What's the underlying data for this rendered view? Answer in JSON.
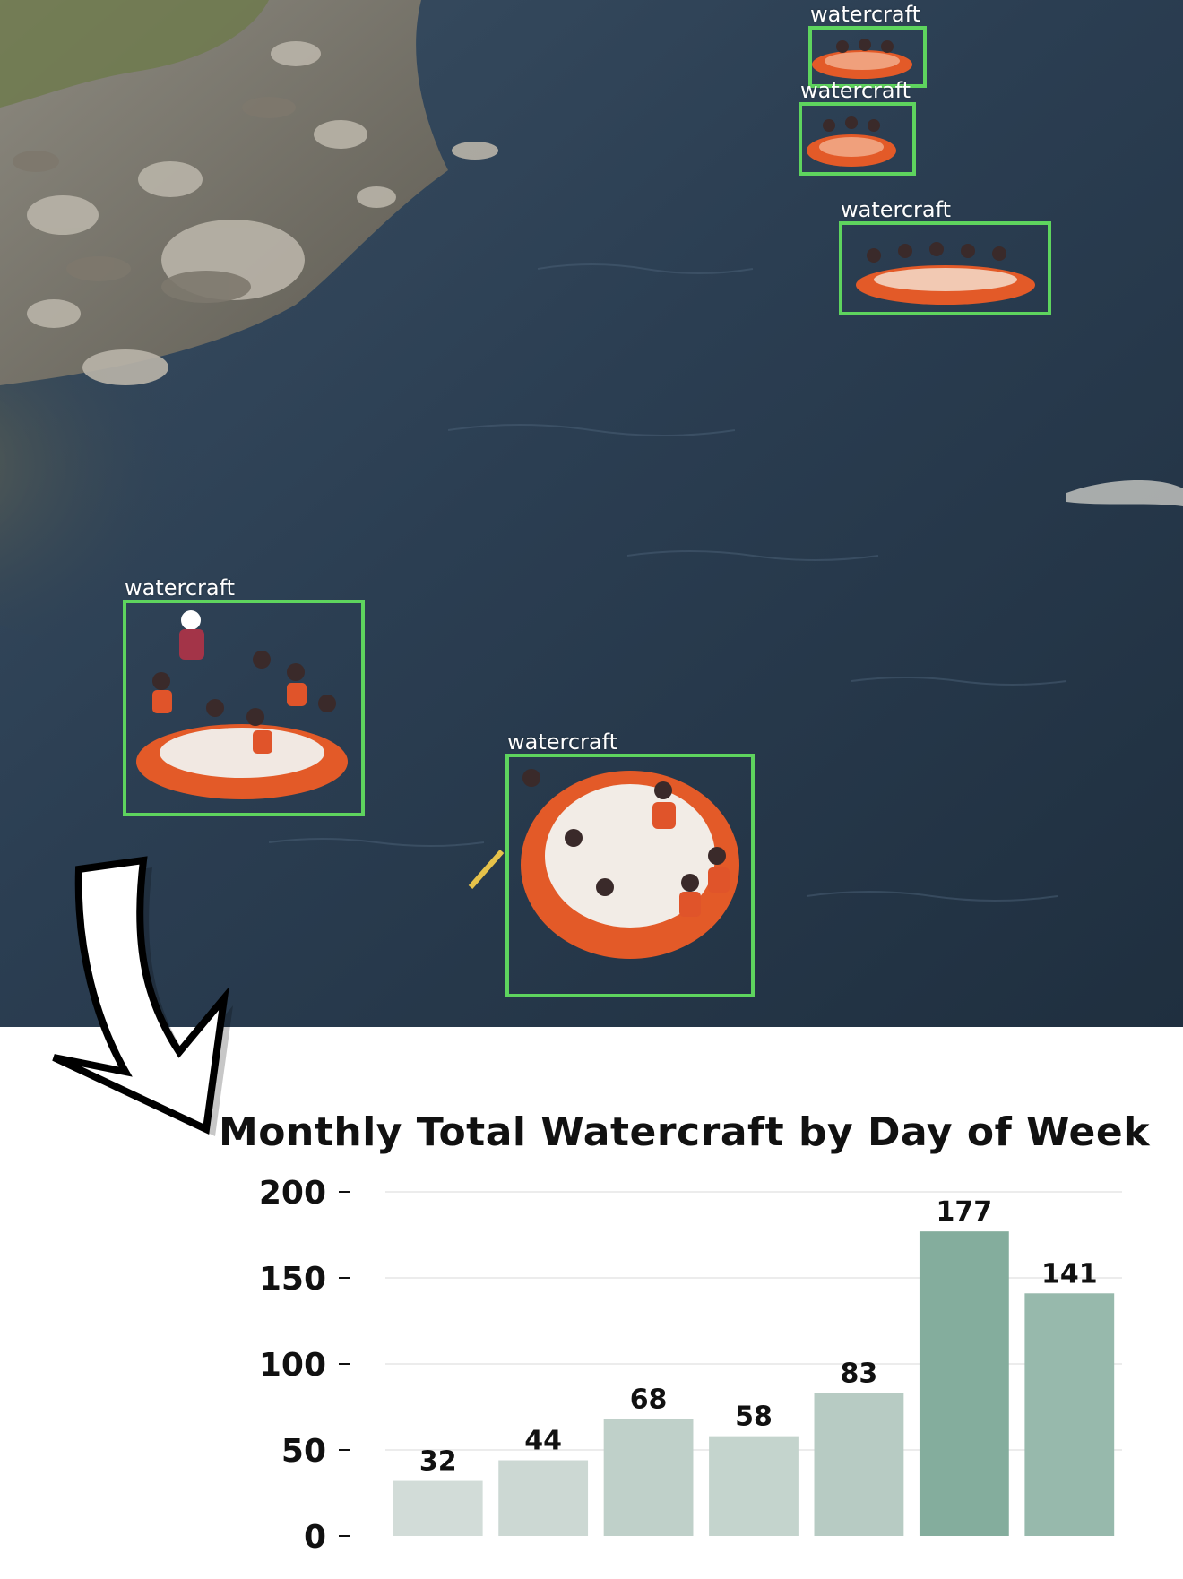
{
  "detections": [
    {
      "label": "watercraft"
    },
    {
      "label": "watercraft"
    },
    {
      "label": "watercraft"
    },
    {
      "label": "watercraft"
    },
    {
      "label": "watercraft"
    }
  ],
  "colors": {
    "detection_box": "#5ed45e",
    "water": "#27394b",
    "raft": "#e35a28",
    "bar_low": "#d2dcd8",
    "bar_high": "#84ad9d",
    "title": "#111111"
  },
  "chart_data": {
    "type": "bar",
    "title": "Monthly Total Watercraft by Day of Week",
    "xlabel": "",
    "ylabel": "",
    "categories": [
      "",
      "",
      "",
      "",
      "",
      "",
      ""
    ],
    "values": [
      32,
      44,
      68,
      58,
      83,
      177,
      141
    ],
    "yticks": [
      0,
      50,
      100,
      150,
      200
    ],
    "ylim": [
      0,
      200
    ],
    "grid": true,
    "data_labels": true
  }
}
